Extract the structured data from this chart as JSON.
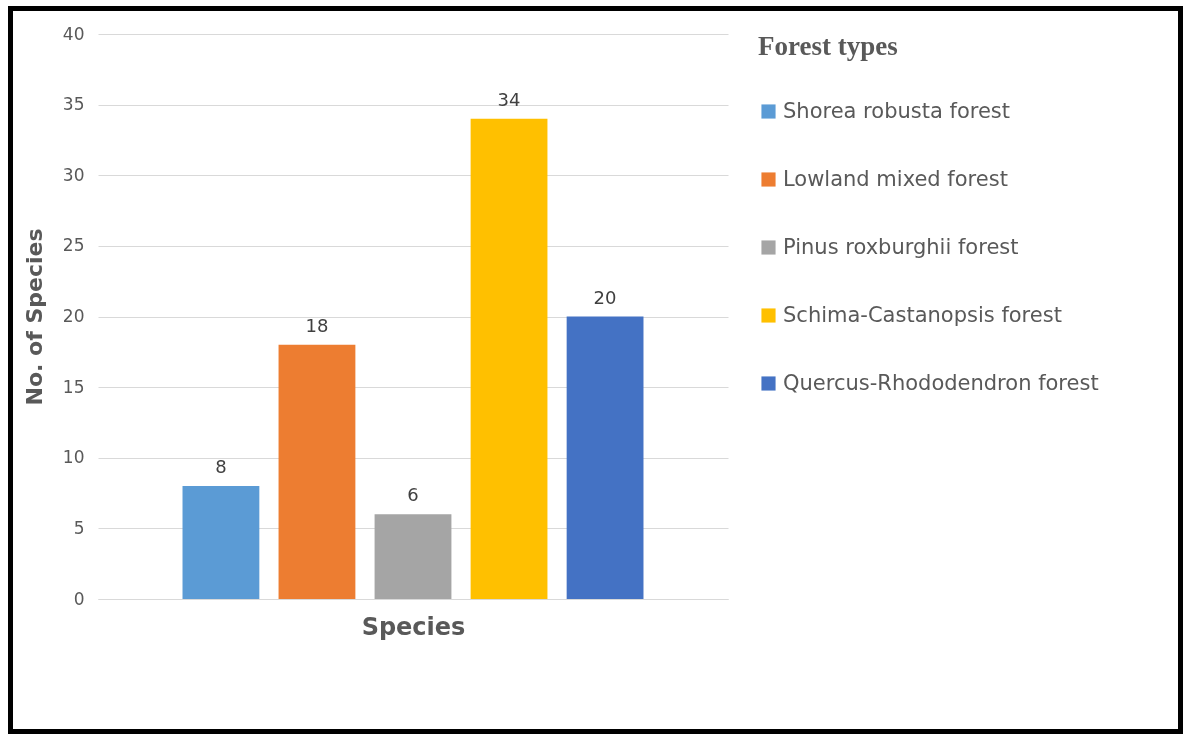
{
  "chart_data": {
    "type": "bar",
    "xlabel": "Species",
    "ylabel": "No. of Species",
    "legend_title": "Forest types",
    "categories": [
      null
    ],
    "series": [
      {
        "name": "Shorea robusta forest",
        "color": "#5b9bd5",
        "values": [
          8
        ]
      },
      {
        "name": "Lowland mixed forest",
        "color": "#ed7d31",
        "values": [
          18
        ]
      },
      {
        "name": "Pinus roxburghii forest",
        "color": "#a5a5a5",
        "values": [
          6
        ]
      },
      {
        "name": "Schima-Castanopsis forest",
        "color": "#ffc000",
        "values": [
          34
        ]
      },
      {
        "name": "Quercus-Rhododendron forest",
        "color": "#4472c4",
        "values": [
          20
        ]
      }
    ],
    "ylim": [
      0,
      40
    ],
    "yticks": [
      0,
      5,
      10,
      15,
      20,
      25,
      30,
      35,
      40
    ],
    "grid": "y",
    "legend": "right",
    "data_labels": true,
    "tick_labels": "y"
  }
}
